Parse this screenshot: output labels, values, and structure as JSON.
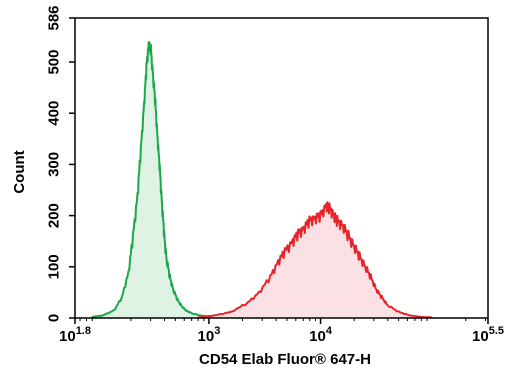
{
  "chart_data": {
    "type": "area",
    "xlabel": "CD54 Elab Fluor® 647-H",
    "ylabel": "Count",
    "x_scale": "log10",
    "xlim_log10": [
      1.8,
      5.5
    ],
    "ylim": [
      0,
      586
    ],
    "x_ticks": [
      {
        "base": "10",
        "exp": "1.8",
        "log10": 1.8
      },
      {
        "base": "10",
        "exp": "3",
        "log10": 3
      },
      {
        "base": "10",
        "exp": "4",
        "log10": 4
      },
      {
        "base": "10",
        "exp": "5.5",
        "log10": 5.5
      }
    ],
    "y_ticks": [
      0,
      100,
      200,
      300,
      400,
      500,
      586
    ],
    "grid": false,
    "legend": "none",
    "series": [
      {
        "color": "#1aa84a",
        "fill": "#dff3e4",
        "x_log10": [
          1.95,
          2.05,
          2.15,
          2.22,
          2.28,
          2.32,
          2.36,
          2.39,
          2.42,
          2.44,
          2.46,
          2.48,
          2.5,
          2.52,
          2.54,
          2.56,
          2.58,
          2.6,
          2.62,
          2.65,
          2.68,
          2.72,
          2.76,
          2.8,
          2.85,
          2.92,
          3.0,
          3.1,
          3.2,
          3.3
        ],
        "count": [
          2,
          5,
          15,
          40,
          90,
          160,
          240,
          330,
          420,
          490,
          535,
          525,
          470,
          420,
          350,
          290,
          220,
          160,
          115,
          80,
          55,
          35,
          22,
          14,
          9,
          5,
          3,
          2,
          1,
          0
        ]
      },
      {
        "color": "#e8242b",
        "fill": "#fbe1e3",
        "x_log10": [
          2.9,
          3.05,
          3.2,
          3.35,
          3.45,
          3.55,
          3.62,
          3.68,
          3.75,
          3.8,
          3.85,
          3.9,
          3.95,
          4.0,
          4.05,
          4.08,
          4.12,
          4.15,
          4.2,
          4.25,
          4.3,
          4.35,
          4.4,
          4.45,
          4.5,
          4.55,
          4.6,
          4.7,
          4.8,
          4.9,
          5.0
        ],
        "count": [
          1,
          5,
          12,
          30,
          50,
          80,
          110,
          130,
          150,
          165,
          175,
          190,
          195,
          200,
          220,
          215,
          200,
          190,
          180,
          160,
          140,
          120,
          100,
          80,
          55,
          40,
          25,
          12,
          5,
          2,
          1
        ]
      }
    ]
  }
}
